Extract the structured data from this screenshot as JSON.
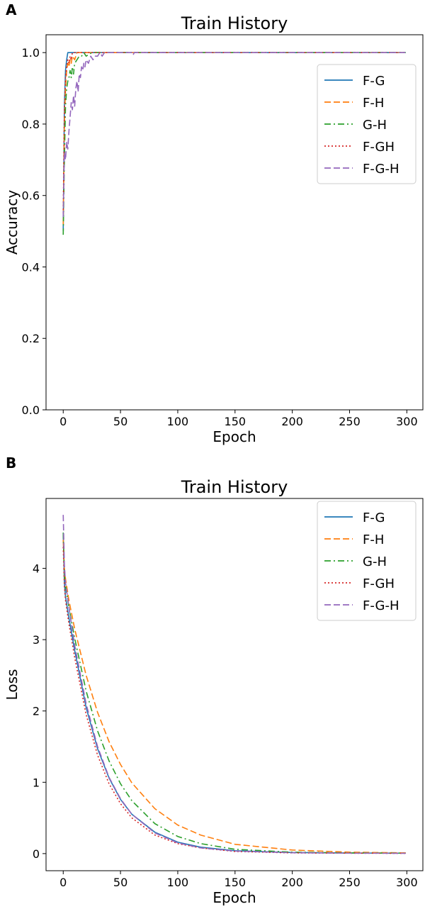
{
  "panels": [
    {
      "letter": "A"
    },
    {
      "letter": "B"
    }
  ],
  "chart_data": [
    {
      "type": "line",
      "title": "Train History",
      "xlabel": "Epoch",
      "ylabel": "Accuracy",
      "xlim": [
        -15,
        314
      ],
      "ylim": [
        0,
        1.05
      ],
      "xticks": [
        0,
        50,
        100,
        150,
        200,
        250,
        300
      ],
      "yticks": [
        "0.0",
        "0.2",
        "0.4",
        "0.6",
        "0.8",
        "1.0"
      ],
      "ytick_values": [
        0,
        0.2,
        0.4,
        0.6,
        0.8,
        1.0
      ],
      "grid": false,
      "legend": "upper right",
      "series": [
        {
          "name": "F-G",
          "color": "#1f77b4",
          "dash": "solid",
          "x": [
            0,
            1,
            2,
            3,
            4,
            5,
            6,
            8,
            10,
            20,
            50,
            100,
            200,
            299
          ],
          "y": [
            0.5,
            0.85,
            0.95,
            0.98,
            1.0,
            1.0,
            1.0,
            1.0,
            1.0,
            1.0,
            1.0,
            1.0,
            1.0,
            1.0
          ]
        },
        {
          "name": "F-H",
          "color": "#ff7f0e",
          "dash": "dashed",
          "x": [
            0,
            1,
            2,
            3,
            4,
            5,
            6,
            7,
            8,
            10,
            12,
            15,
            20,
            50,
            100,
            200,
            299
          ],
          "y": [
            0.52,
            0.8,
            0.9,
            0.95,
            0.97,
            0.96,
            0.98,
            0.97,
            0.99,
            0.98,
            1.0,
            1.0,
            1.0,
            1.0,
            1.0,
            1.0,
            1.0
          ]
        },
        {
          "name": "G-H",
          "color": "#2ca02c",
          "dash": "dashdot",
          "x": [
            0,
            1,
            2,
            3,
            4,
            5,
            6,
            7,
            8,
            9,
            10,
            12,
            14,
            16,
            18,
            20,
            25,
            30,
            50,
            100,
            200,
            299
          ],
          "y": [
            0.49,
            0.7,
            0.85,
            0.9,
            0.92,
            0.93,
            0.95,
            0.93,
            0.96,
            0.94,
            0.97,
            0.98,
            0.99,
            0.99,
            1.0,
            0.99,
            1.0,
            1.0,
            1.0,
            1.0,
            1.0,
            1.0
          ]
        },
        {
          "name": "F-GH",
          "color": "#d62728",
          "dash": "dotted",
          "x": [
            0,
            1,
            2,
            3,
            4,
            5,
            6,
            7,
            8,
            10,
            15,
            20,
            50,
            100,
            200,
            299
          ],
          "y": [
            0.55,
            0.83,
            0.93,
            0.96,
            0.98,
            0.97,
            0.99,
            0.98,
            1.0,
            1.0,
            1.0,
            1.0,
            1.0,
            1.0,
            1.0,
            1.0
          ]
        },
        {
          "name": "F-G-H",
          "color": "#9467bd",
          "dash": "dashed",
          "x": [
            0,
            1,
            2,
            3,
            4,
            5,
            6,
            7,
            8,
            9,
            10,
            11,
            12,
            13,
            14,
            15,
            16,
            17,
            18,
            19,
            20,
            22,
            24,
            26,
            28,
            30,
            32,
            34,
            36,
            40,
            45,
            50,
            55,
            60,
            61,
            62,
            70,
            100,
            150,
            200,
            250,
            299
          ],
          "y": [
            0.54,
            0.72,
            0.7,
            0.75,
            0.73,
            0.78,
            0.82,
            0.86,
            0.84,
            0.88,
            0.85,
            0.9,
            0.92,
            0.89,
            0.94,
            0.93,
            0.96,
            0.95,
            0.97,
            0.96,
            0.98,
            0.97,
            0.99,
            0.98,
            0.99,
            0.99,
            1.0,
            0.99,
            1.0,
            1.0,
            1.0,
            1.0,
            1.0,
            1.0,
            0.993,
            1.0,
            1.0,
            1.0,
            1.0,
            1.0,
            1.0,
            1.0
          ]
        }
      ]
    },
    {
      "type": "line",
      "title": "Train History",
      "xlabel": "Epoch",
      "ylabel": "Loss",
      "xlim": [
        -15,
        314
      ],
      "ylim": [
        -0.24,
        4.98
      ],
      "xticks": [
        0,
        50,
        100,
        150,
        200,
        250,
        300
      ],
      "yticks": [
        "0",
        "1",
        "2",
        "3",
        "4"
      ],
      "ytick_values": [
        0,
        1,
        2,
        3,
        4
      ],
      "grid": false,
      "legend": "upper right",
      "series": [
        {
          "name": "F-G",
          "color": "#1f77b4",
          "dash": "solid",
          "x": [
            0,
            1,
            2,
            5,
            10,
            20,
            30,
            40,
            50,
            60,
            80,
            100,
            120,
            150,
            200,
            250,
            299
          ],
          "y": [
            4.5,
            3.8,
            3.6,
            3.3,
            2.85,
            2.05,
            1.47,
            1.06,
            0.76,
            0.55,
            0.3,
            0.16,
            0.09,
            0.04,
            0.015,
            0.008,
            0.006
          ]
        },
        {
          "name": "F-H",
          "color": "#ff7f0e",
          "dash": "dashed",
          "x": [
            0,
            1,
            2,
            5,
            10,
            20,
            30,
            40,
            50,
            60,
            80,
            100,
            120,
            150,
            200,
            250,
            299
          ],
          "y": [
            4.4,
            4.0,
            3.85,
            3.55,
            3.15,
            2.5,
            1.98,
            1.57,
            1.25,
            0.99,
            0.63,
            0.4,
            0.26,
            0.13,
            0.05,
            0.02,
            0.01
          ]
        },
        {
          "name": "G-H",
          "color": "#2ca02c",
          "dash": "dashdot",
          "x": [
            0,
            1,
            2,
            5,
            10,
            20,
            30,
            40,
            50,
            60,
            80,
            100,
            120,
            150,
            200,
            250,
            299
          ],
          "y": [
            4.5,
            3.9,
            3.75,
            3.45,
            3.02,
            2.28,
            1.72,
            1.3,
            0.98,
            0.74,
            0.42,
            0.24,
            0.14,
            0.06,
            0.02,
            0.01,
            0.006
          ]
        },
        {
          "name": "F-GH",
          "color": "#d62728",
          "dash": "dotted",
          "x": [
            0,
            1,
            2,
            5,
            10,
            20,
            30,
            40,
            50,
            60,
            80,
            100,
            120,
            150,
            200,
            250,
            299
          ],
          "y": [
            4.3,
            3.75,
            3.55,
            3.22,
            2.75,
            1.95,
            1.38,
            0.98,
            0.7,
            0.5,
            0.26,
            0.14,
            0.08,
            0.03,
            0.01,
            0.006,
            0.004
          ]
        },
        {
          "name": "F-G-H",
          "color": "#9467bd",
          "dash": "dashed",
          "x": [
            0,
            1,
            2,
            5,
            10,
            20,
            30,
            40,
            50,
            60,
            80,
            100,
            120,
            150,
            200,
            250,
            299
          ],
          "y": [
            4.75,
            4.05,
            3.8,
            3.45,
            2.92,
            2.1,
            1.5,
            1.07,
            0.77,
            0.55,
            0.29,
            0.15,
            0.08,
            0.035,
            0.012,
            0.006,
            0.004
          ]
        }
      ]
    }
  ]
}
